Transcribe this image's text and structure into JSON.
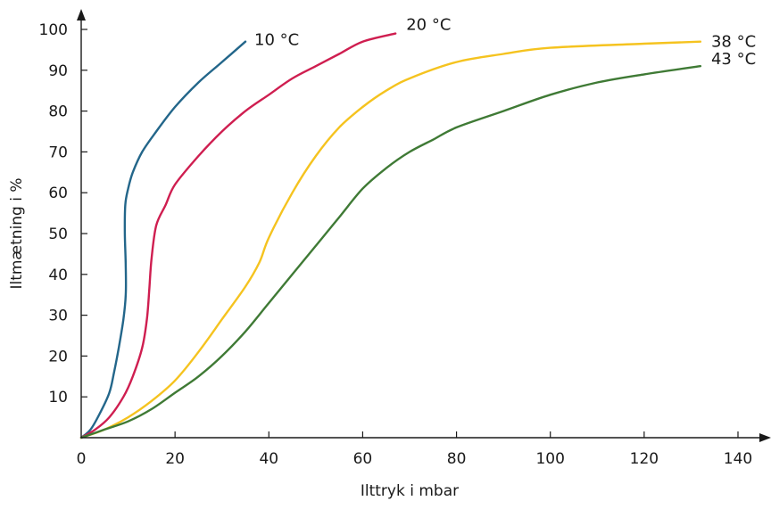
{
  "chart_data": {
    "type": "line",
    "xlabel": "Ilttryk i mbar",
    "ylabel": "Iltmætning i %",
    "xlim": [
      0,
      140
    ],
    "ylim": [
      0,
      100
    ],
    "x_ticks": [
      0,
      20,
      40,
      60,
      80,
      100,
      120,
      140
    ],
    "y_ticks": [
      10,
      20,
      30,
      40,
      50,
      60,
      70,
      80,
      90,
      100
    ],
    "grid": false,
    "series": [
      {
        "name": "10 °C",
        "color": "#23668a",
        "points": [
          [
            0,
            0
          ],
          [
            2,
            2
          ],
          [
            4,
            6
          ],
          [
            6,
            11
          ],
          [
            7,
            16
          ],
          [
            8,
            22
          ],
          [
            9,
            29
          ],
          [
            9.5,
            35
          ],
          [
            9.5,
            42
          ],
          [
            9.3,
            50
          ],
          [
            9.4,
            57
          ],
          [
            10,
            61
          ],
          [
            11,
            65
          ],
          [
            13,
            70
          ],
          [
            16,
            75
          ],
          [
            20,
            81
          ],
          [
            25,
            87
          ],
          [
            30,
            92
          ],
          [
            35,
            97
          ]
        ]
      },
      {
        "name": "20 °C",
        "color": "#cf1e50",
        "points": [
          [
            0,
            0
          ],
          [
            3,
            2
          ],
          [
            6,
            5
          ],
          [
            9,
            10
          ],
          [
            11,
            15
          ],
          [
            13,
            22
          ],
          [
            14,
            29
          ],
          [
            14.5,
            36
          ],
          [
            15,
            44
          ],
          [
            16,
            52
          ],
          [
            18,
            57
          ],
          [
            20,
            62
          ],
          [
            25,
            69
          ],
          [
            30,
            75
          ],
          [
            35,
            80
          ],
          [
            40,
            84
          ],
          [
            45,
            88
          ],
          [
            50,
            91
          ],
          [
            55,
            94
          ],
          [
            60,
            97
          ],
          [
            67,
            99
          ]
        ]
      },
      {
        "name": "38 °C",
        "color": "#f5c31f",
        "points": [
          [
            0,
            0
          ],
          [
            5,
            2
          ],
          [
            10,
            5
          ],
          [
            15,
            9
          ],
          [
            20,
            14
          ],
          [
            25,
            21
          ],
          [
            30,
            29
          ],
          [
            35,
            37
          ],
          [
            38,
            43
          ],
          [
            40,
            49
          ],
          [
            45,
            60
          ],
          [
            50,
            69
          ],
          [
            55,
            76
          ],
          [
            60,
            81
          ],
          [
            65,
            85
          ],
          [
            70,
            88
          ],
          [
            80,
            92
          ],
          [
            90,
            94
          ],
          [
            100,
            95.5
          ],
          [
            120,
            96.5
          ],
          [
            132,
            97
          ]
        ]
      },
      {
        "name": "43 °C",
        "color": "#3f7a35",
        "points": [
          [
            0,
            0
          ],
          [
            5,
            2
          ],
          [
            10,
            4
          ],
          [
            15,
            7
          ],
          [
            20,
            11
          ],
          [
            25,
            15
          ],
          [
            30,
            20
          ],
          [
            35,
            26
          ],
          [
            40,
            33
          ],
          [
            45,
            40
          ],
          [
            50,
            47
          ],
          [
            55,
            54
          ],
          [
            60,
            61
          ],
          [
            65,
            66
          ],
          [
            70,
            70
          ],
          [
            75,
            73
          ],
          [
            80,
            76
          ],
          [
            90,
            80
          ],
          [
            100,
            84
          ],
          [
            110,
            87
          ],
          [
            120,
            89
          ],
          [
            132,
            91
          ]
        ]
      }
    ]
  }
}
